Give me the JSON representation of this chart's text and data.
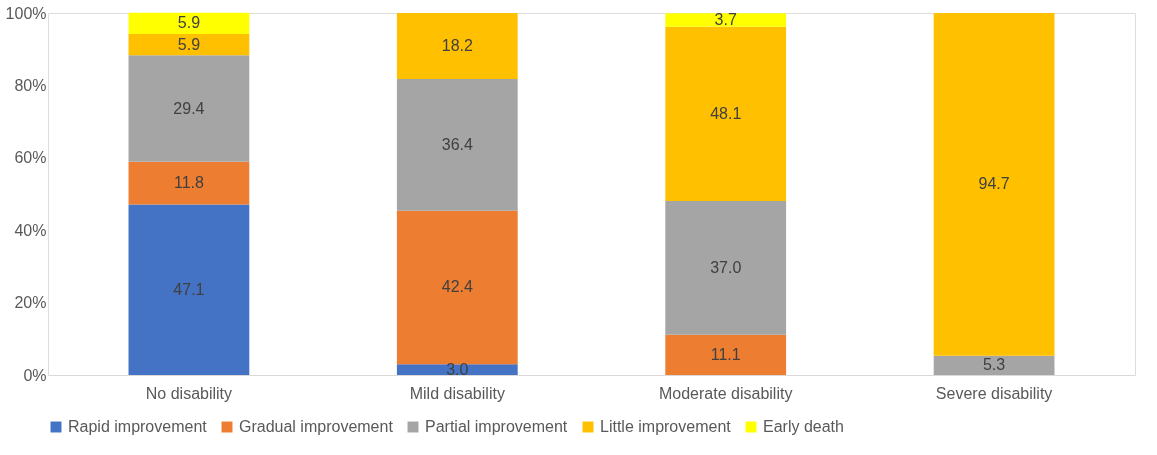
{
  "chart_data": {
    "type": "bar",
    "stacked": true,
    "categories": [
      "No disability",
      "Mild disability",
      "Moderate disability",
      "Severe disability"
    ],
    "series": [
      {
        "name": "Rapid improvement",
        "color": "#4472c4",
        "values": [
          47.1,
          3.0,
          null,
          null
        ],
        "value_labels": [
          "47.1",
          "3.0",
          null,
          null
        ]
      },
      {
        "name": "Gradual improvement",
        "color": "#ed7d31",
        "values": [
          11.8,
          42.4,
          11.1,
          null
        ],
        "value_labels": [
          "11.8",
          "42.4",
          "11.1",
          null
        ]
      },
      {
        "name": "Partial improvement",
        "color": "#a5a5a5",
        "values": [
          29.4,
          36.4,
          37.0,
          5.3
        ],
        "value_labels": [
          "29.4",
          "36.4",
          "37.0",
          "5.3"
        ]
      },
      {
        "name": "Little improvement",
        "color": "#ffc000",
        "values": [
          5.9,
          18.2,
          48.1,
          94.7
        ],
        "value_labels": [
          "5.9",
          "18.2",
          "48.1",
          "94.7"
        ]
      },
      {
        "name": "Early death",
        "color": "#ffff00",
        "values": [
          5.9,
          null,
          3.7,
          null
        ],
        "value_labels": [
          "5.9",
          null,
          "3.7",
          null
        ]
      }
    ],
    "ylim": [
      0,
      100
    ],
    "yticks": [
      {
        "value": 0,
        "label": "0%"
      },
      {
        "value": 20,
        "label": "20%"
      },
      {
        "value": 40,
        "label": "40%"
      },
      {
        "value": 60,
        "label": "60%"
      },
      {
        "value": 80,
        "label": "80%"
      },
      {
        "value": 100,
        "label": "100%"
      }
    ],
    "grid": false,
    "legend": "bottom"
  }
}
